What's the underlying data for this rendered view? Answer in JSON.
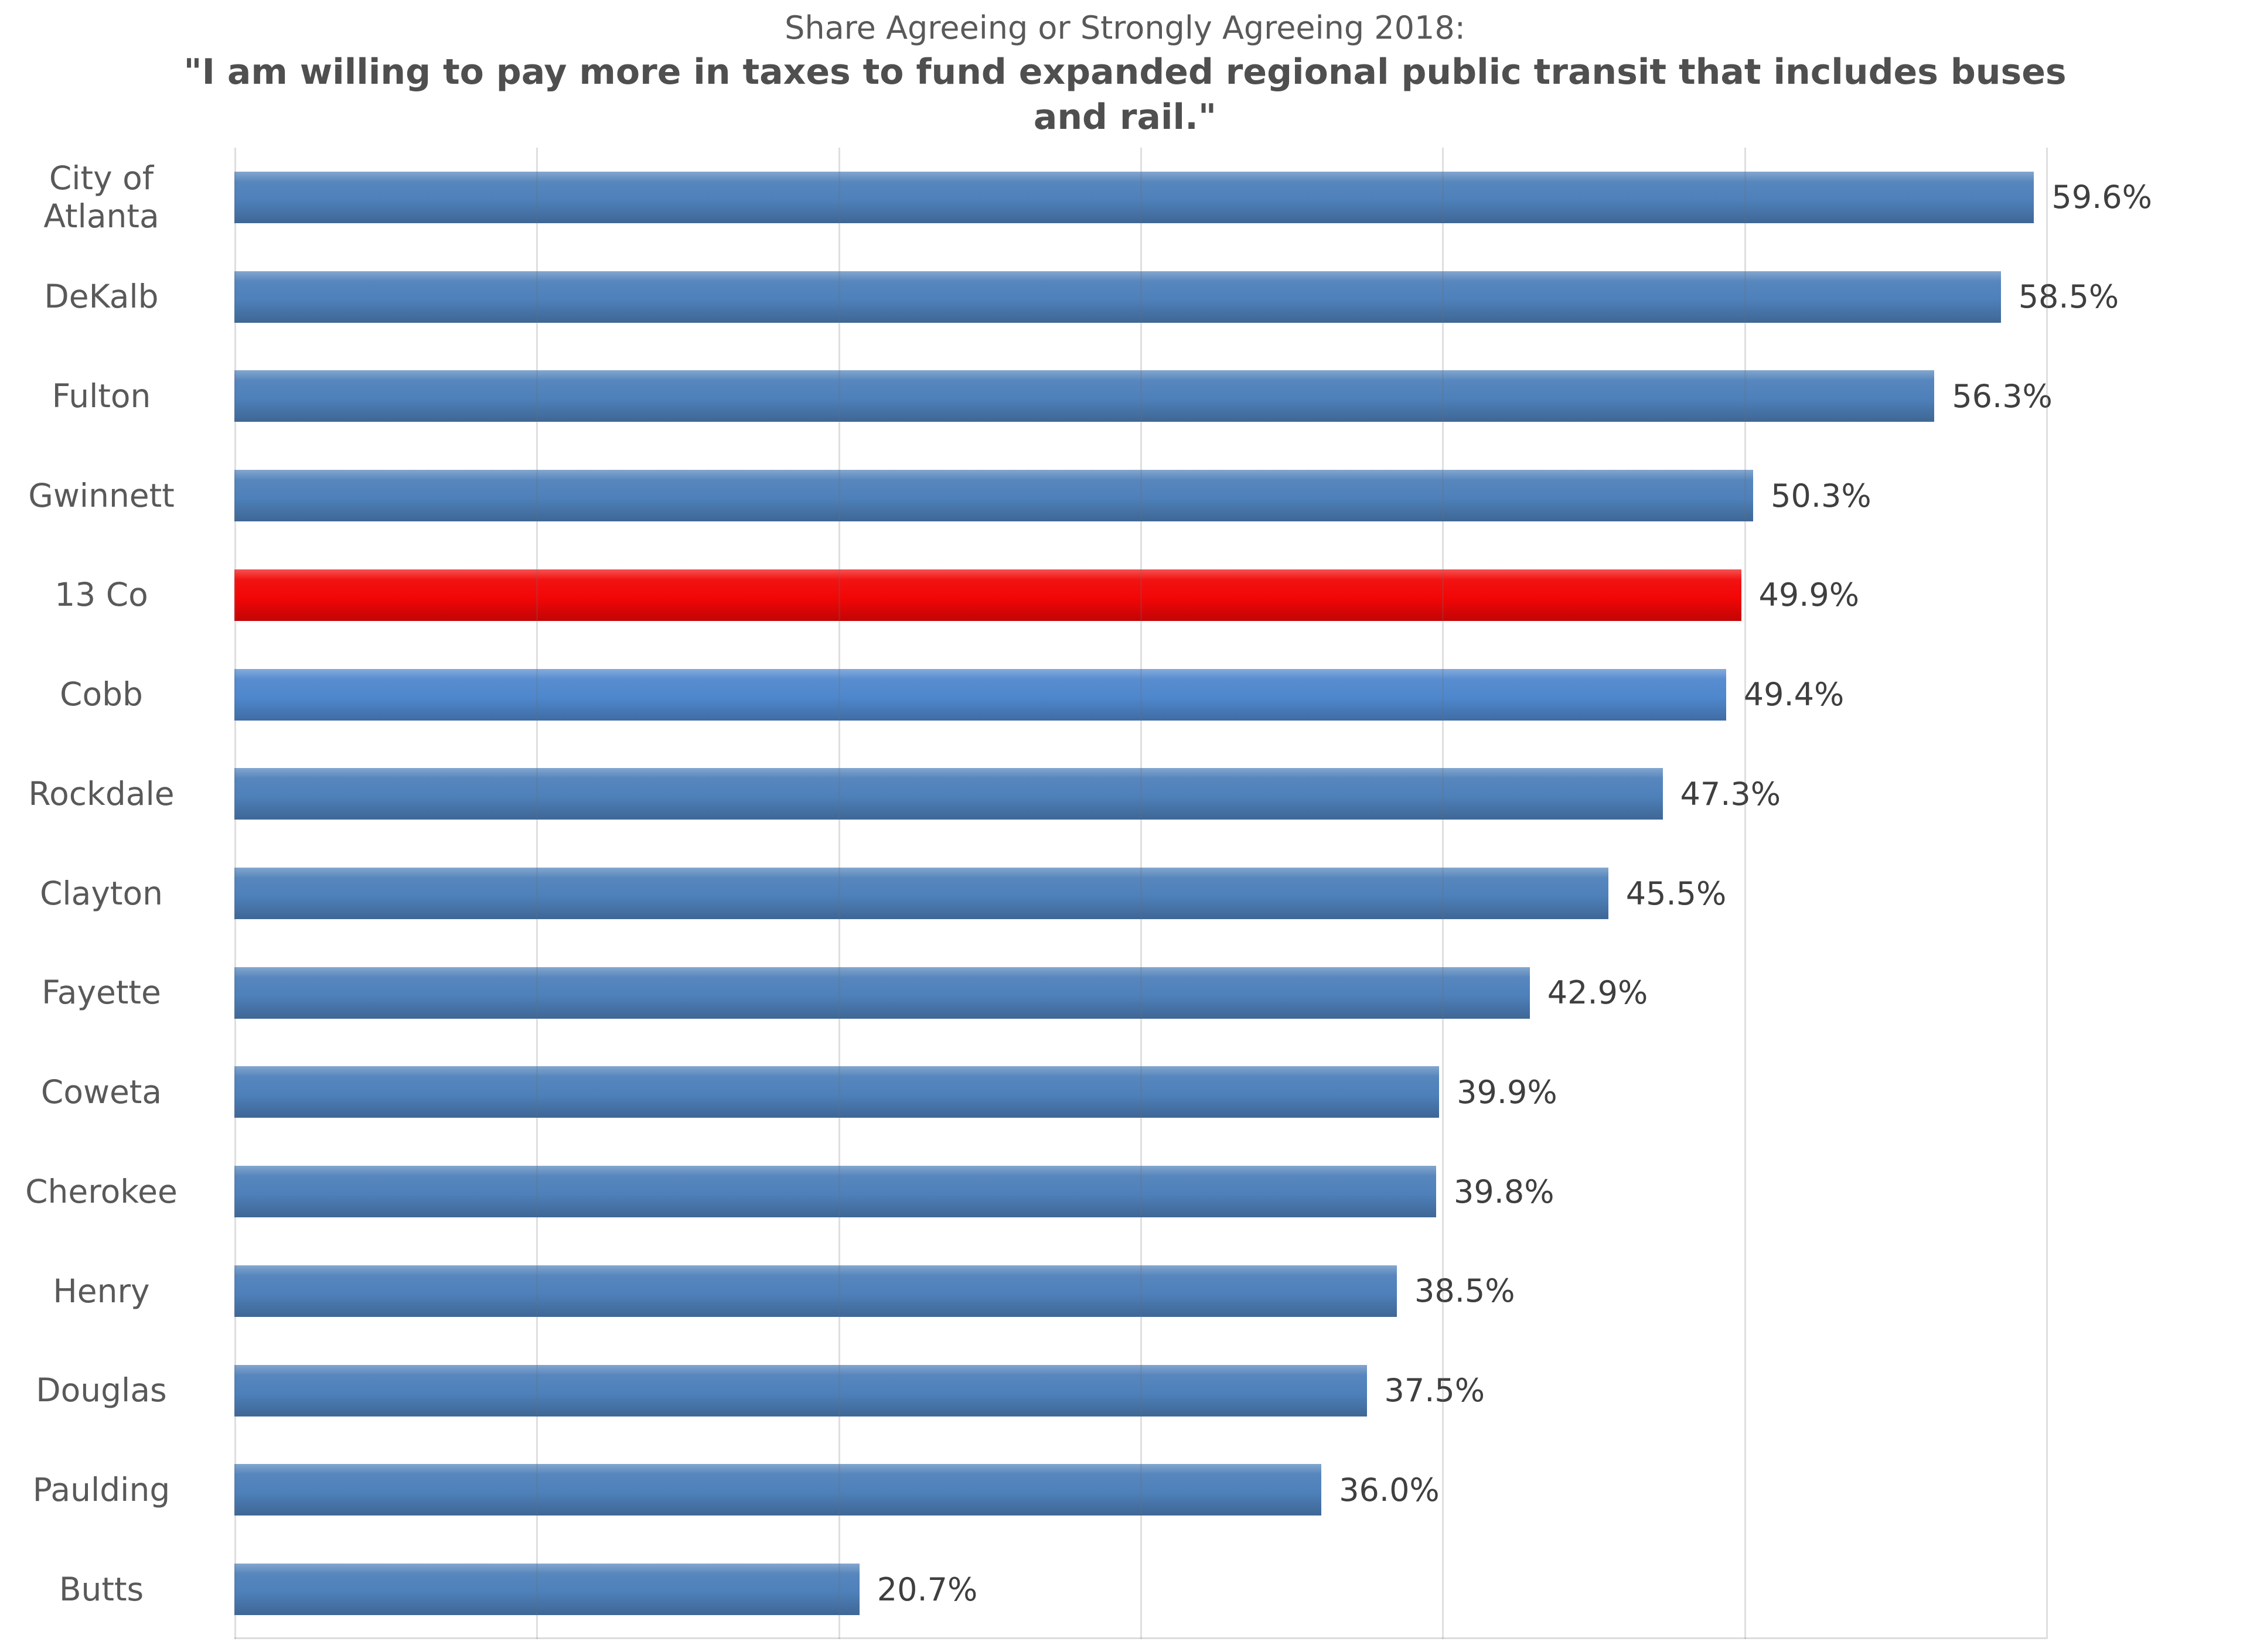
{
  "title": {
    "line1": "Share Agreeing or Strongly Agreeing 2018:",
    "line2": "\"I am willing to pay more in taxes to fund expanded regional public transit that includes buses",
    "line3": "and rail.\""
  },
  "chart_data": {
    "type": "bar",
    "orientation": "horizontal",
    "title": "Share Agreeing or Strongly Agreeing 2018: \"I am willing to pay more in taxes to fund expanded regional public transit that includes buses and rail.\"",
    "categories": [
      "City of Atlanta",
      "DeKalb",
      "Fulton",
      "Gwinnett",
      "13 Co",
      "Cobb",
      "Rockdale",
      "Clayton",
      "Fayette",
      "Coweta",
      "Cherokee",
      "Henry",
      "Douglas",
      "Paulding",
      "Butts"
    ],
    "values": [
      59.6,
      58.5,
      56.3,
      50.3,
      49.9,
      49.4,
      47.3,
      45.5,
      42.9,
      39.9,
      39.8,
      38.5,
      37.5,
      36.0,
      20.7
    ],
    "value_labels": [
      "59.6%",
      "58.5%",
      "56.3%",
      "50.3%",
      "49.9%",
      "49.4%",
      "47.3%",
      "45.5%",
      "42.9%",
      "39.9%",
      "39.8%",
      "38.5%",
      "37.5%",
      "36.0%",
      "20.7%"
    ],
    "colors": [
      "#4e80ba",
      "#4e80ba",
      "#4e80ba",
      "#4e80ba",
      "#f20606",
      "#4f87cd",
      "#4e80ba",
      "#4e80ba",
      "#4e80ba",
      "#4e80ba",
      "#4e80ba",
      "#4e80ba",
      "#4e80ba",
      "#4e80ba",
      "#4e80ba"
    ],
    "default_bar_color": "#4e80ba",
    "highlight": {
      "category": "13 Co",
      "color": "#f20606"
    },
    "xlabel": "",
    "ylabel": "",
    "xlim": [
      0,
      60
    ],
    "grid_step": 10,
    "grid": true,
    "legend": "none",
    "gridline_color": "#d9d9d9",
    "category_label_color": "#595959",
    "value_label_color": "#3f3f3f",
    "title_color": "#595959"
  }
}
